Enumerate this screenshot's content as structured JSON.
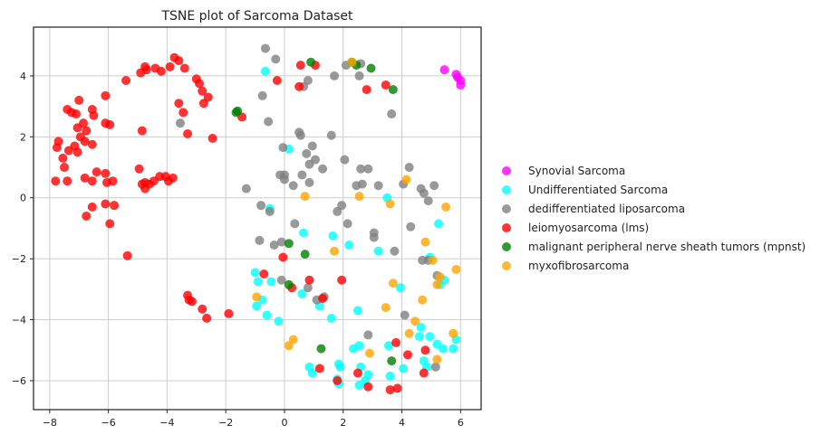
{
  "chart_data": {
    "type": "scatter",
    "title": "TSNE plot of Sarcoma Dataset",
    "xlabel": "",
    "ylabel": "",
    "xlim": [
      -8.55,
      6.7
    ],
    "ylim": [
      -6.95,
      5.6
    ],
    "xticks": [
      -8,
      -6,
      -4,
      -2,
      0,
      2,
      4,
      6
    ],
    "yticks": [
      -6,
      -4,
      -2,
      0,
      2,
      4
    ],
    "grid": true,
    "legend_position": "right",
    "series": [
      {
        "name": "Synovial Sarcoma",
        "color": "#ff00ff",
        "points": [
          [
            5.45,
            4.2
          ],
          [
            5.85,
            4.05
          ],
          [
            5.9,
            3.95
          ],
          [
            6.0,
            3.85
          ],
          [
            6.0,
            3.7
          ]
        ]
      },
      {
        "name": "Undifferentiated Sarcoma",
        "color": "#00ffff",
        "points": [
          [
            -0.65,
            4.15
          ],
          [
            0.15,
            1.6
          ],
          [
            -0.5,
            -0.35
          ],
          [
            1.65,
            -1.25
          ],
          [
            0.65,
            -1.15
          ],
          [
            2.2,
            -1.55
          ],
          [
            3.2,
            -1.75
          ],
          [
            3.5,
            0.0
          ],
          [
            5.25,
            -0.85
          ],
          [
            4.95,
            -1.95
          ],
          [
            -1.0,
            -2.45
          ],
          [
            -0.9,
            -2.75
          ],
          [
            -0.45,
            -2.75
          ],
          [
            -0.75,
            -3.35
          ],
          [
            -0.95,
            -3.55
          ],
          [
            -0.6,
            -3.85
          ],
          [
            -0.2,
            -4.05
          ],
          [
            0.6,
            -3.15
          ],
          [
            1.2,
            -3.55
          ],
          [
            1.6,
            -3.95
          ],
          [
            2.5,
            -3.7
          ],
          [
            0.85,
            -5.55
          ],
          [
            0.95,
            -5.75
          ],
          [
            1.85,
            -5.45
          ],
          [
            1.9,
            -5.55
          ],
          [
            1.8,
            -5.95
          ],
          [
            1.85,
            -6.1
          ],
          [
            2.35,
            -4.95
          ],
          [
            2.55,
            -4.85
          ],
          [
            2.6,
            -5.55
          ],
          [
            2.85,
            -5.8
          ],
          [
            2.55,
            -6.15
          ],
          [
            2.75,
            -6.0
          ],
          [
            3.55,
            -4.85
          ],
          [
            3.6,
            -5.85
          ],
          [
            4.05,
            -5.6
          ],
          [
            4.65,
            -4.25
          ],
          [
            4.6,
            -4.55
          ],
          [
            4.95,
            -4.55
          ],
          [
            4.75,
            -5.35
          ],
          [
            4.85,
            -5.55
          ],
          [
            5.2,
            -4.8
          ],
          [
            5.4,
            -4.95
          ],
          [
            5.85,
            -4.65
          ],
          [
            5.75,
            -4.95
          ],
          [
            5.45,
            -2.7
          ],
          [
            5.3,
            -2.85
          ],
          [
            3.95,
            -2.95
          ]
        ]
      },
      {
        "name": "dedifferentiated liposarcoma",
        "color": "#808080",
        "points": [
          [
            -0.65,
            4.9
          ],
          [
            -0.3,
            4.55
          ],
          [
            -0.75,
            3.35
          ],
          [
            -0.55,
            2.5
          ],
          [
            0.65,
            3.65
          ],
          [
            0.8,
            3.85
          ],
          [
            1.7,
            4.0
          ],
          [
            2.1,
            4.35
          ],
          [
            2.6,
            4.4
          ],
          [
            2.55,
            4.0
          ],
          [
            3.65,
            2.75
          ],
          [
            -3.55,
            2.45
          ],
          [
            0.5,
            2.15
          ],
          [
            0.55,
            2.05
          ],
          [
            1.6,
            2.05
          ],
          [
            -0.05,
            1.65
          ],
          [
            0.95,
            1.7
          ],
          [
            0.75,
            1.45
          ],
          [
            1.05,
            1.25
          ],
          [
            0.85,
            1.1
          ],
          [
            1.3,
            0.95
          ],
          [
            2.05,
            1.25
          ],
          [
            2.6,
            0.95
          ],
          [
            2.85,
            0.95
          ],
          [
            -0.15,
            0.75
          ],
          [
            0.0,
            0.75
          ],
          [
            0.0,
            0.6
          ],
          [
            0.3,
            0.4
          ],
          [
            0.85,
            0.5
          ],
          [
            0.6,
            0.75
          ],
          [
            2.45,
            0.4
          ],
          [
            2.65,
            0.45
          ],
          [
            3.2,
            0.4
          ],
          [
            4.25,
            1.0
          ],
          [
            4.05,
            0.45
          ],
          [
            4.65,
            0.3
          ],
          [
            4.75,
            0.15
          ],
          [
            4.9,
            -0.1
          ],
          [
            5.1,
            0.4
          ],
          [
            -1.3,
            0.3
          ],
          [
            -0.8,
            -0.25
          ],
          [
            -0.5,
            -0.45
          ],
          [
            1.8,
            -0.45
          ],
          [
            1.95,
            -0.25
          ],
          [
            2.15,
            -0.85
          ],
          [
            3.05,
            -1.15
          ],
          [
            4.3,
            -0.95
          ],
          [
            -0.35,
            -1.55
          ],
          [
            -0.1,
            -1.45
          ],
          [
            -0.85,
            -1.4
          ],
          [
            0.35,
            -0.85
          ],
          [
            3.05,
            -1.3
          ],
          [
            3.75,
            -1.75
          ],
          [
            4.7,
            -2.05
          ],
          [
            4.9,
            -2.05
          ],
          [
            5.2,
            -2.55
          ],
          [
            -0.1,
            -2.7
          ],
          [
            0.8,
            -2.95
          ],
          [
            1.1,
            -3.35
          ],
          [
            1.35,
            -3.25
          ],
          [
            4.1,
            -3.85
          ],
          [
            2.85,
            -4.5
          ],
          [
            5.15,
            -5.55
          ]
        ]
      },
      {
        "name": "leiomyosarcoma (lms)",
        "color": "#ff0000",
        "points": [
          [
            -7.8,
            0.55
          ],
          [
            -7.4,
            0.55
          ],
          [
            -7.75,
            1.65
          ],
          [
            -7.7,
            1.85
          ],
          [
            -7.35,
            1.55
          ],
          [
            -7.5,
            1.0
          ],
          [
            -7.55,
            1.3
          ],
          [
            -7.4,
            2.9
          ],
          [
            -7.25,
            2.8
          ],
          [
            -7.1,
            2.75
          ],
          [
            -7.0,
            3.2
          ],
          [
            -6.55,
            2.9
          ],
          [
            -6.5,
            2.7
          ],
          [
            -6.85,
            2.45
          ],
          [
            -7.05,
            2.3
          ],
          [
            -6.95,
            2.0
          ],
          [
            -7.15,
            1.7
          ],
          [
            -7.05,
            1.5
          ],
          [
            -6.8,
            1.85
          ],
          [
            -6.75,
            2.2
          ],
          [
            -6.55,
            1.75
          ],
          [
            -6.1,
            3.35
          ],
          [
            -6.1,
            2.45
          ],
          [
            -5.95,
            2.4
          ],
          [
            -6.8,
            0.65
          ],
          [
            -6.55,
            0.55
          ],
          [
            -6.4,
            0.85
          ],
          [
            -6.1,
            0.8
          ],
          [
            -6.05,
            0.5
          ],
          [
            -5.85,
            0.55
          ],
          [
            -6.55,
            -0.3
          ],
          [
            -6.75,
            -0.6
          ],
          [
            -6.1,
            -0.2
          ],
          [
            -5.8,
            -0.25
          ],
          [
            -5.95,
            -0.85
          ],
          [
            -5.35,
            -1.9
          ],
          [
            -4.95,
            0.95
          ],
          [
            -4.75,
            0.5
          ],
          [
            -4.85,
            0.45
          ],
          [
            -4.75,
            0.3
          ],
          [
            -4.6,
            0.45
          ],
          [
            -4.45,
            0.55
          ],
          [
            -4.25,
            0.7
          ],
          [
            -4.05,
            0.7
          ],
          [
            -3.95,
            0.55
          ],
          [
            -3.8,
            0.65
          ],
          [
            -5.4,
            3.85
          ],
          [
            -4.9,
            4.1
          ],
          [
            -4.75,
            4.3
          ],
          [
            -4.7,
            4.2
          ],
          [
            -4.4,
            4.25
          ],
          [
            -4.2,
            4.15
          ],
          [
            -3.9,
            4.3
          ],
          [
            -3.75,
            4.6
          ],
          [
            -3.6,
            4.5
          ],
          [
            -3.4,
            4.25
          ],
          [
            -3.0,
            3.9
          ],
          [
            -2.9,
            3.75
          ],
          [
            -2.8,
            3.5
          ],
          [
            -2.6,
            3.3
          ],
          [
            -2.75,
            3.1
          ],
          [
            -3.6,
            3.1
          ],
          [
            -3.45,
            2.8
          ],
          [
            -3.3,
            2.1
          ],
          [
            -4.85,
            2.2
          ],
          [
            -2.45,
            1.95
          ],
          [
            -3.3,
            -3.2
          ],
          [
            -3.25,
            -3.35
          ],
          [
            -3.15,
            -3.4
          ],
          [
            -2.8,
            -3.65
          ],
          [
            -2.65,
            -3.95
          ],
          [
            -1.9,
            -3.8
          ],
          [
            -1.45,
            2.65
          ],
          [
            0.55,
            4.35
          ],
          [
            0.5,
            3.65
          ],
          [
            1.05,
            4.35
          ],
          [
            -0.25,
            3.85
          ],
          [
            2.8,
            3.55
          ],
          [
            3.45,
            3.7
          ],
          [
            -0.7,
            -2.5
          ],
          [
            -0.05,
            -1.95
          ],
          [
            0.25,
            -2.95
          ],
          [
            0.85,
            -2.7
          ],
          [
            1.3,
            -3.3
          ],
          [
            1.95,
            -2.7
          ],
          [
            1.2,
            -5.6
          ],
          [
            1.8,
            -6.0
          ],
          [
            2.5,
            -5.75
          ],
          [
            2.85,
            -6.2
          ],
          [
            3.6,
            -6.3
          ],
          [
            3.8,
            -4.75
          ],
          [
            3.85,
            -6.25
          ],
          [
            4.2,
            -5.15
          ],
          [
            4.8,
            -5.0
          ],
          [
            4.75,
            -5.75
          ]
        ]
      },
      {
        "name": "malignant peripheral nerve sheath tumors (mpnst)",
        "color": "#008000",
        "points": [
          [
            -1.6,
            2.85
          ],
          [
            -1.65,
            2.8
          ],
          [
            0.9,
            4.45
          ],
          [
            2.3,
            4.45
          ],
          [
            2.45,
            4.35
          ],
          [
            2.95,
            4.25
          ],
          [
            3.7,
            3.55
          ],
          [
            0.15,
            -1.5
          ],
          [
            0.7,
            -1.85
          ],
          [
            0.15,
            -2.85
          ],
          [
            1.25,
            -4.95
          ],
          [
            3.65,
            -5.35
          ]
        ]
      },
      {
        "name": "myxofibrosarcoma",
        "color": "#ffa500",
        "points": [
          [
            2.3,
            4.45
          ],
          [
            4.15,
            0.6
          ],
          [
            0.7,
            0.05
          ],
          [
            2.55,
            0.05
          ],
          [
            3.6,
            -0.2
          ],
          [
            5.5,
            -0.3
          ],
          [
            1.7,
            -1.75
          ],
          [
            4.8,
            -1.45
          ],
          [
            5.05,
            -2.05
          ],
          [
            5.85,
            -2.35
          ],
          [
            5.3,
            -2.6
          ],
          [
            3.7,
            -2.8
          ],
          [
            5.2,
            -2.85
          ],
          [
            4.7,
            -3.35
          ],
          [
            -0.95,
            -3.25
          ],
          [
            3.45,
            -3.6
          ],
          [
            0.15,
            -4.85
          ],
          [
            0.3,
            -4.65
          ],
          [
            4.45,
            -4.05
          ],
          [
            5.75,
            -4.45
          ],
          [
            4.25,
            -4.45
          ],
          [
            5.2,
            -5.3
          ],
          [
            2.9,
            -5.1
          ]
        ]
      }
    ]
  }
}
